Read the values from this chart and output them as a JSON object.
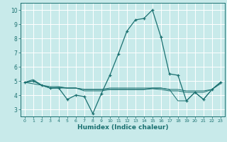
{
  "xlabel": "Humidex (Indice chaleur)",
  "background_color": "#c8eaea",
  "grid_color": "#ffffff",
  "line_color": "#1a7070",
  "xlim": [
    -0.5,
    23.5
  ],
  "ylim": [
    2.5,
    10.5
  ],
  "x": [
    0,
    1,
    2,
    3,
    4,
    5,
    6,
    7,
    8,
    9,
    10,
    11,
    12,
    13,
    14,
    15,
    16,
    17,
    18,
    19,
    20,
    21,
    22,
    23
  ],
  "line1": [
    4.9,
    5.0,
    4.7,
    4.5,
    4.5,
    3.7,
    4.0,
    3.9,
    2.7,
    4.1,
    5.4,
    6.9,
    8.5,
    9.3,
    9.4,
    10.0,
    8.1,
    5.5,
    5.4,
    3.6,
    4.2,
    3.7,
    4.4,
    4.9
  ],
  "line2": [
    4.9,
    5.1,
    4.7,
    4.5,
    4.5,
    4.5,
    4.5,
    4.4,
    4.4,
    4.4,
    4.5,
    4.5,
    4.5,
    4.5,
    4.5,
    4.5,
    4.5,
    4.4,
    4.4,
    4.3,
    4.3,
    4.3,
    4.4,
    4.9
  ],
  "line3": [
    4.9,
    5.0,
    4.7,
    4.5,
    4.55,
    4.5,
    4.5,
    4.3,
    4.3,
    4.3,
    4.4,
    4.4,
    4.4,
    4.4,
    4.4,
    4.45,
    4.4,
    4.3,
    4.3,
    4.2,
    4.2,
    4.2,
    4.4,
    4.8
  ],
  "line4": [
    4.9,
    4.8,
    4.7,
    4.6,
    4.6,
    4.5,
    4.5,
    4.4,
    4.4,
    4.4,
    4.4,
    4.4,
    4.4,
    4.4,
    4.4,
    4.5,
    4.5,
    4.4,
    3.6,
    3.6,
    4.2,
    3.7,
    4.4,
    4.9
  ],
  "ytick_vals": [
    3,
    4,
    5,
    6,
    7,
    8,
    9,
    10
  ],
  "ytick_labels": [
    "3",
    "4",
    "5",
    "6",
    "7",
    "8",
    "9",
    "10"
  ]
}
